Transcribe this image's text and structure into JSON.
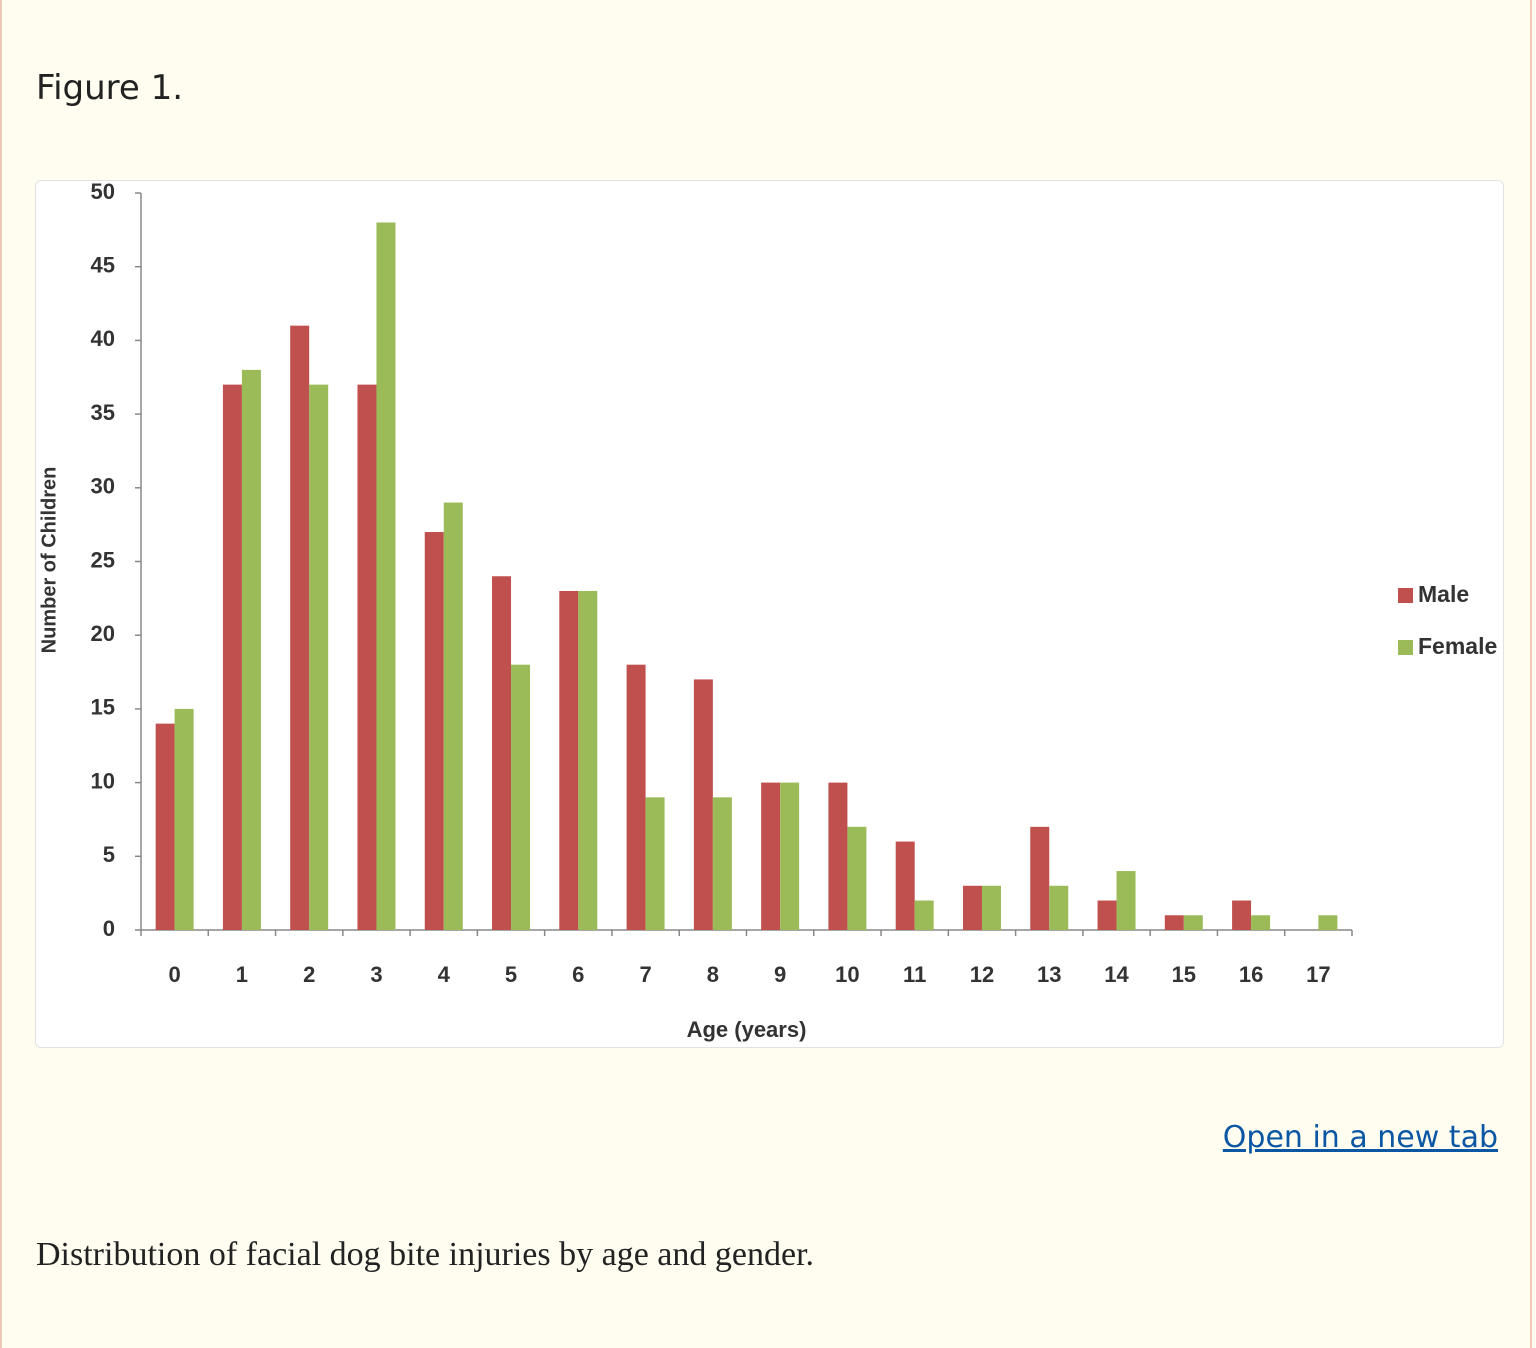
{
  "header": {
    "label": "Figure 1."
  },
  "link": "Open in a new tab",
  "caption": "Distribution of facial dog bite injuries by age and gender.",
  "chart_data": {
    "type": "bar",
    "x_label": "Age (years)",
    "y_label": "Number of Children",
    "categories": [
      "0",
      "1",
      "2",
      "3",
      "4",
      "5",
      "6",
      "7",
      "8",
      "9",
      "10",
      "11",
      "12",
      "13",
      "14",
      "15",
      "16",
      "17"
    ],
    "series": [
      {
        "name": "Male",
        "color": "#c0504d",
        "values": [
          14,
          37,
          41,
          37,
          27,
          24,
          23,
          18,
          17,
          10,
          10,
          6,
          3,
          7,
          2,
          1,
          2,
          0
        ]
      },
      {
        "name": "Female",
        "color": "#9bbb59",
        "values": [
          15,
          38,
          37,
          48,
          29,
          18,
          23,
          9,
          9,
          10,
          7,
          2,
          3,
          3,
          4,
          1,
          1,
          1
        ]
      }
    ],
    "ylim": [
      0,
      50
    ],
    "yticks": [
      0,
      5,
      10,
      15,
      20,
      25,
      30,
      35,
      40,
      45,
      50
    ],
    "grid": false,
    "legend": "right"
  }
}
